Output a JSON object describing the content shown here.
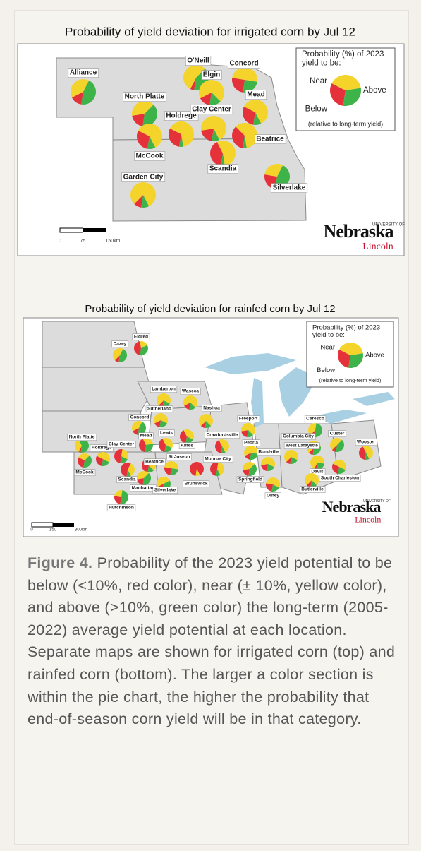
{
  "chart_data": [
    {
      "type": "pie-map",
      "title": "Probability of yield deviation for irrigated corn by Jul 12",
      "legend_title": [
        "Probability (%) of 2023",
        "yield to be:"
      ],
      "legend_note": "(relative to long-term yield)",
      "categories": [
        "Below",
        "Near",
        "Above"
      ],
      "colors": [
        "#e5323a",
        "#f4d42b",
        "#3db34a"
      ],
      "scale_labels": [
        "0",
        "75",
        "150km"
      ],
      "logo": {
        "top": "UNIVERSITY OF",
        "name": "Nebraska",
        "sub": "Lincoln"
      },
      "locations": [
        {
          "name": "Alliance",
          "values": [
            15,
            40,
            45
          ]
        },
        {
          "name": "O'Neill",
          "values": [
            5,
            55,
            40
          ]
        },
        {
          "name": "Elgin",
          "values": [
            15,
            70,
            15
          ]
        },
        {
          "name": "Concord",
          "values": [
            25,
            50,
            25
          ]
        },
        {
          "name": "North Platte",
          "values": [
            20,
            40,
            40
          ]
        },
        {
          "name": "Mead",
          "values": [
            30,
            60,
            10
          ]
        },
        {
          "name": "Holdrege",
          "values": [
            30,
            65,
            5
          ]
        },
        {
          "name": "Clay Center",
          "values": [
            20,
            70,
            10
          ]
        },
        {
          "name": "McCook",
          "values": [
            30,
            60,
            10
          ]
        },
        {
          "name": "Beatrice",
          "values": [
            35,
            60,
            5
          ]
        },
        {
          "name": "Scandia",
          "values": [
            40,
            55,
            5
          ]
        },
        {
          "name": "Garden City",
          "values": [
            10,
            80,
            10
          ]
        },
        {
          "name": "Silverlake",
          "values": [
            25,
            30,
            45
          ]
        }
      ]
    },
    {
      "type": "pie-map",
      "title": "Probability of yield deviation for rainfed corn by Jul 12",
      "legend_title": [
        "Probability (%) of 2023",
        "yield to be:"
      ],
      "legend_note": "(relative to long-term yield)",
      "categories": [
        "Below",
        "Near",
        "Above"
      ],
      "colors": [
        "#e5323a",
        "#f4d42b",
        "#3db34a"
      ],
      "scale_labels": [
        "0",
        "150",
        "300km"
      ],
      "logo": {
        "top": "UNIVERSITY OF",
        "name": "Nebraska",
        "sub": "Lincoln"
      },
      "locations": [
        {
          "name": "Eldred",
          "values": [
            45,
            20,
            35
          ]
        },
        {
          "name": "Dazey",
          "values": [
            10,
            45,
            45
          ]
        },
        {
          "name": "Lamberton",
          "values": [
            10,
            70,
            20
          ]
        },
        {
          "name": "Waseca",
          "values": [
            15,
            70,
            15
          ]
        },
        {
          "name": "Sutherland",
          "values": [
            15,
            65,
            20
          ]
        },
        {
          "name": "Nashua",
          "values": [
            10,
            75,
            15
          ]
        },
        {
          "name": "Concord",
          "values": [
            15,
            40,
            45
          ]
        },
        {
          "name": "Freeport",
          "values": [
            20,
            65,
            15
          ]
        },
        {
          "name": "Ceresco",
          "values": [
            10,
            40,
            50
          ]
        },
        {
          "name": "North Platte",
          "values": [
            5,
            35,
            60
          ]
        },
        {
          "name": "Mead",
          "values": [
            40,
            30,
            30
          ]
        },
        {
          "name": "Lewis",
          "values": [
            40,
            40,
            20
          ]
        },
        {
          "name": "Ames",
          "values": [
            40,
            40,
            20
          ]
        },
        {
          "name": "Crawfordsville",
          "values": [
            40,
            50,
            10
          ]
        },
        {
          "name": "Columbia City",
          "values": [
            10,
            60,
            30
          ]
        },
        {
          "name": "Custer",
          "values": [
            10,
            50,
            40
          ]
        },
        {
          "name": "Wooster",
          "values": [
            40,
            50,
            10
          ]
        },
        {
          "name": "Holdrege",
          "values": [
            30,
            50,
            20
          ]
        },
        {
          "name": "Clay Center",
          "values": [
            50,
            30,
            20
          ]
        },
        {
          "name": "Beatrice",
          "values": [
            45,
            40,
            15
          ]
        },
        {
          "name": "St Joseph",
          "values": [
            25,
            50,
            25
          ]
        },
        {
          "name": "Monroe City",
          "values": [
            50,
            40,
            10
          ]
        },
        {
          "name": "Peoria",
          "values": [
            15,
            60,
            25
          ]
        },
        {
          "name": "West Lafayette",
          "values": [
            10,
            70,
            20
          ]
        },
        {
          "name": "Bondville",
          "values": [
            20,
            60,
            20
          ]
        },
        {
          "name": "McCook",
          "values": [
            30,
            30,
            40
          ]
        },
        {
          "name": "Scandia",
          "values": [
            55,
            35,
            10
          ]
        },
        {
          "name": "Manhattan",
          "values": [
            20,
            40,
            40
          ]
        },
        {
          "name": "Silverlake",
          "values": [
            15,
            50,
            35
          ]
        },
        {
          "name": "Brunswick",
          "values": [
            90,
            10,
            0
          ]
        },
        {
          "name": "Springfield",
          "values": [
            20,
            40,
            40
          ]
        },
        {
          "name": "Davis",
          "values": [
            5,
            70,
            25
          ]
        },
        {
          "name": "South Charleston",
          "values": [
            30,
            50,
            20
          ]
        },
        {
          "name": "Olney",
          "values": [
            25,
            55,
            20
          ]
        },
        {
          "name": "Butlerville",
          "values": [
            10,
            75,
            15
          ]
        },
        {
          "name": "Hutchinson",
          "values": [
            25,
            25,
            50
          ]
        }
      ]
    }
  ],
  "caption": {
    "label": "Figure 4.",
    "text": "Probability of the 2023 yield potential to be below (<10%, red color), near (± 10%, yellow color), and above (>10%, green color) the long-term (2005-2022) average yield potential at each location. Separate maps are shown for irrigated corn (top) and rainfed corn (bottom). The larger a color section is within the pie chart, the higher the probability that end-of-season corn yield will be in that category."
  }
}
